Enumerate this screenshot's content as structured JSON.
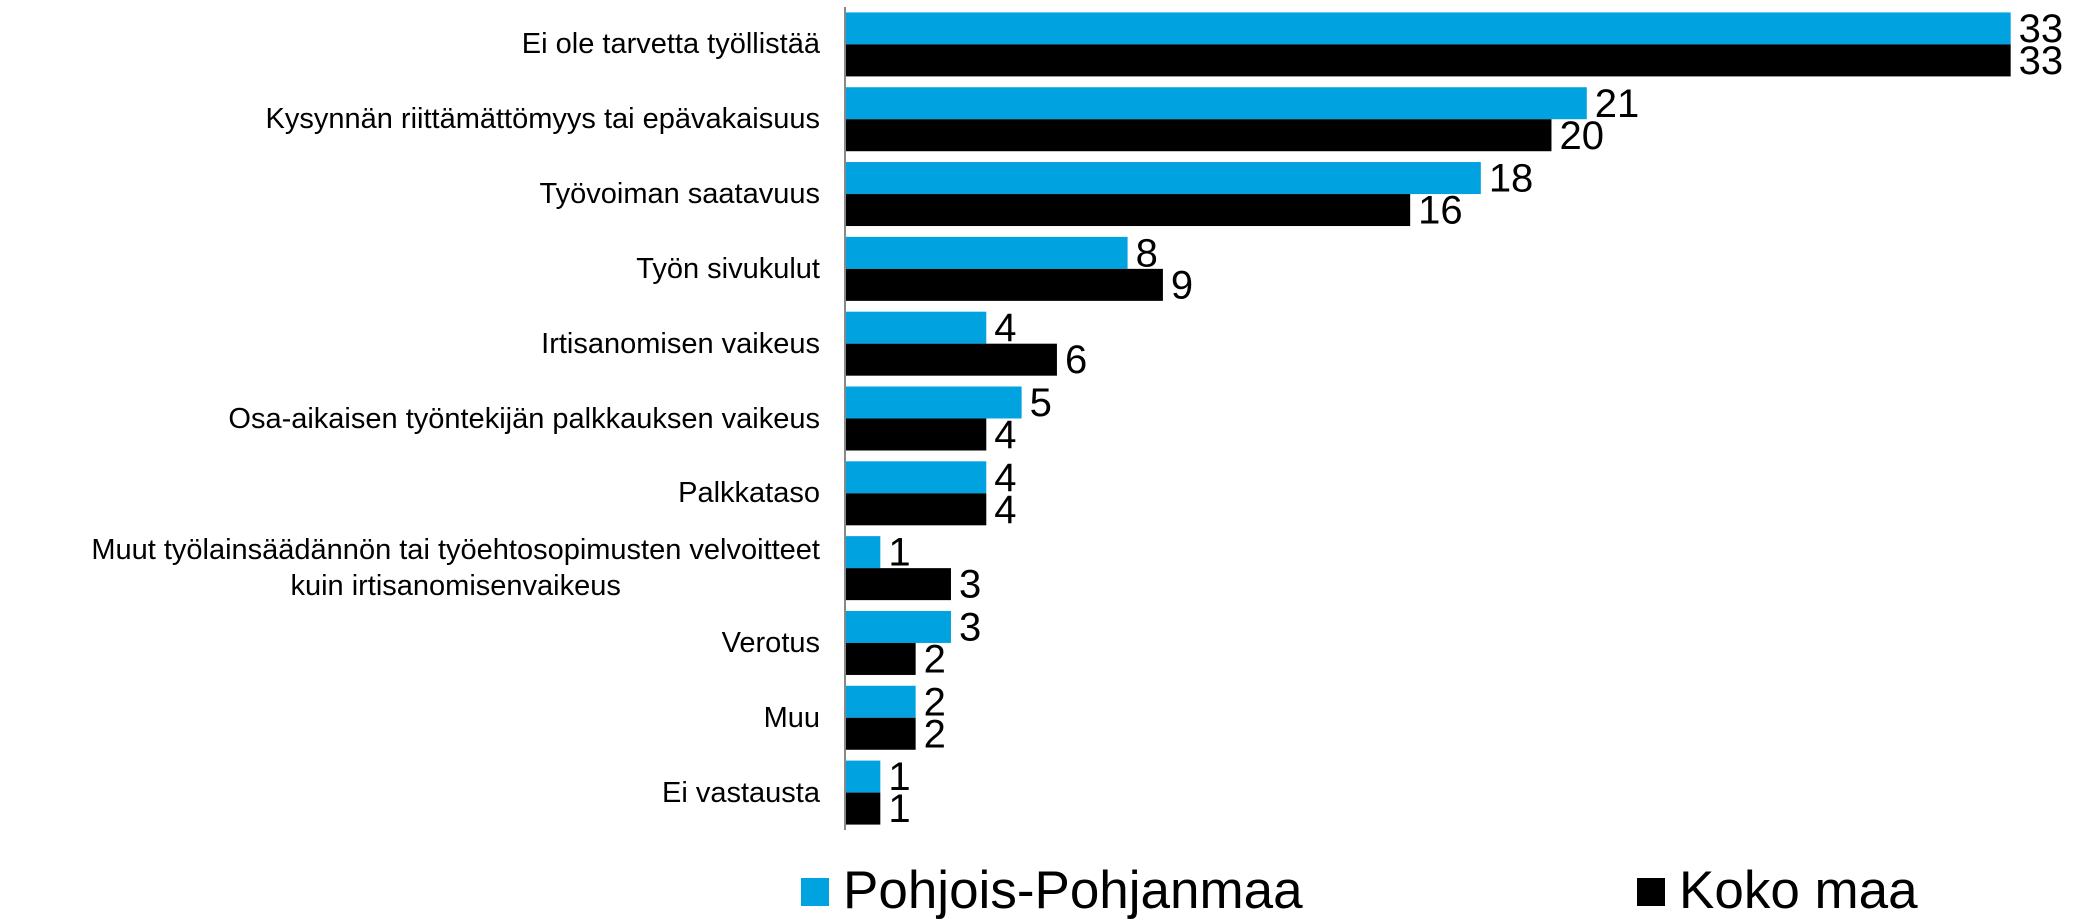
{
  "chart_data": {
    "type": "bar",
    "orientation": "horizontal",
    "categories": [
      "Ei ole tarvetta työllistää",
      "Kysynnän riittämättömyys tai epävakaisuus",
      "Työvoiman saatavuus",
      "Työn sivukulut",
      "Irtisanomisen vaikeus",
      "Osa-aikaisen työntekijän palkkauksen vaikeus",
      "Palkkataso",
      "Muut työlainsäädännön tai työehtosopimusten velvoitteet\nkuin irtisanomisenvaikeus",
      "Verotus",
      "Muu",
      "Ei vastausta"
    ],
    "series": [
      {
        "name": "Pohjois-Pohjanmaa",
        "color": "#00a3e0",
        "values": [
          33,
          21,
          18,
          8,
          4,
          5,
          4,
          1,
          3,
          2,
          1
        ]
      },
      {
        "name": "Koko maa",
        "color": "#000000",
        "values": [
          33,
          20,
          16,
          9,
          6,
          4,
          4,
          3,
          2,
          2,
          1
        ]
      }
    ],
    "xlim": [
      0,
      34
    ],
    "legend": "bottom"
  }
}
